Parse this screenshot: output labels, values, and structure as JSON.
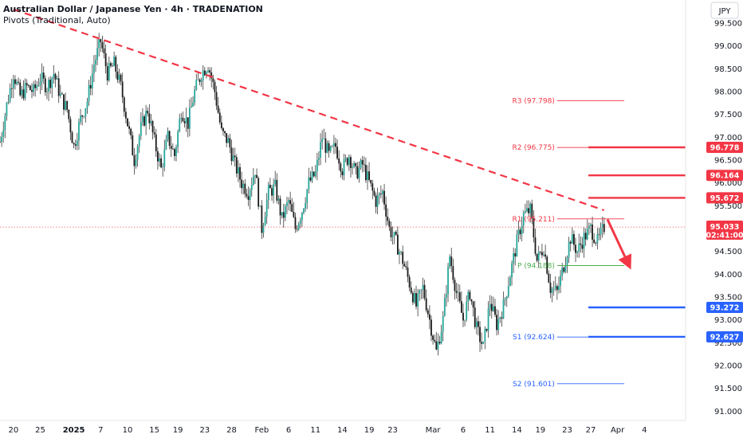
{
  "header": {
    "title": "Australian Dollar / Japanese Yen · 4h · TRADENATION",
    "indicator": "Pivots (Traditional, Auto)",
    "currency_badge": "JPY"
  },
  "colors": {
    "up": "#26a69a",
    "down": "#1a1a1a",
    "wick": "#3a3a3a",
    "resistance": "#f23645",
    "support": "#2962ff",
    "pivot": "#4caf50",
    "trend": "#f23645"
  },
  "chart_data": {
    "type": "candlestick",
    "symbol": "AUDJPY",
    "ylim": [
      90.9,
      99.9
    ],
    "yticks": [
      91.0,
      91.5,
      92.0,
      92.5,
      93.0,
      93.5,
      94.0,
      94.5,
      95.0,
      95.5,
      96.0,
      96.5,
      97.0,
      97.5,
      98.0,
      98.5,
      99.0,
      99.5
    ],
    "ytick_labels": [
      "91.000",
      "91.500",
      "92.000",
      "92.500",
      "93.000",
      "93.500",
      "94.000",
      "94.500",
      "95.000",
      "95.500",
      "96.000",
      "96.500",
      "97.000",
      "97.500",
      "98.000",
      "98.500",
      "99.000",
      "99.500"
    ],
    "xlim": [
      0,
      100
    ],
    "x_ticks": [
      {
        "label": "20",
        "x": 2,
        "bold": false
      },
      {
        "label": "25",
        "x": 6,
        "bold": false
      },
      {
        "label": "2025",
        "x": 11,
        "bold": true
      },
      {
        "label": "7",
        "x": 15,
        "bold": false
      },
      {
        "label": "10",
        "x": 19,
        "bold": false
      },
      {
        "label": "15",
        "x": 23,
        "bold": false
      },
      {
        "label": "19",
        "x": 26.5,
        "bold": false
      },
      {
        "label": "23",
        "x": 30.5,
        "bold": false
      },
      {
        "label": "28",
        "x": 34.5,
        "bold": false
      },
      {
        "label": "Feb",
        "x": 39,
        "bold": false
      },
      {
        "label": "6",
        "x": 43,
        "bold": false
      },
      {
        "label": "11",
        "x": 47,
        "bold": false
      },
      {
        "label": "14",
        "x": 51,
        "bold": false
      },
      {
        "label": "19",
        "x": 55,
        "bold": false
      },
      {
        "label": "23",
        "x": 58.5,
        "bold": false
      },
      {
        "label": "Mar",
        "x": 64.5,
        "bold": false
      },
      {
        "label": "6",
        "x": 69,
        "bold": false
      },
      {
        "label": "11",
        "x": 73,
        "bold": false
      },
      {
        "label": "14",
        "x": 77,
        "bold": false
      },
      {
        "label": "19",
        "x": 80.5,
        "bold": false
      },
      {
        "label": "23",
        "x": 84.5,
        "bold": false
      },
      {
        "label": "27",
        "x": 88,
        "bold": false
      },
      {
        "label": "Apr",
        "x": 92,
        "bold": false
      },
      {
        "label": "4",
        "x": 96,
        "bold": false
      }
    ],
    "price_path": [
      [
        0,
        96.9
      ],
      [
        1,
        97.7
      ],
      [
        2,
        98.4
      ],
      [
        3,
        97.9
      ],
      [
        4,
        98.1
      ],
      [
        5,
        98.0
      ],
      [
        6,
        98.3
      ],
      [
        7,
        98.1
      ],
      [
        8,
        98.4
      ],
      [
        9,
        97.9
      ],
      [
        10,
        97.6
      ],
      [
        11,
        96.8
      ],
      [
        12,
        97.4
      ],
      [
        13,
        97.8
      ],
      [
        14,
        98.6
      ],
      [
        15,
        99.1
      ],
      [
        16,
        98.4
      ],
      [
        17,
        98.6
      ],
      [
        18,
        98.1
      ],
      [
        19,
        97.3
      ],
      [
        20,
        96.5
      ],
      [
        21,
        97.2
      ],
      [
        22,
        97.6
      ],
      [
        23,
        96.9
      ],
      [
        24,
        96.3
      ],
      [
        25,
        97.0
      ],
      [
        26,
        96.6
      ],
      [
        27,
        97.6
      ],
      [
        28,
        97.3
      ],
      [
        29,
        98.0
      ],
      [
        30,
        98.4
      ],
      [
        31,
        98.6
      ],
      [
        32,
        98.0
      ],
      [
        33,
        97.1
      ],
      [
        34,
        96.9
      ],
      [
        35,
        96.4
      ],
      [
        36,
        96.0
      ],
      [
        37,
        95.8
      ],
      [
        38,
        96.3
      ],
      [
        39,
        95.0
      ],
      [
        40,
        95.8
      ],
      [
        41,
        95.9
      ],
      [
        42,
        95.2
      ],
      [
        43,
        95.6
      ],
      [
        44,
        95.0
      ],
      [
        45,
        95.4
      ],
      [
        46,
        96.0
      ],
      [
        47,
        96.2
      ],
      [
        48,
        97.0
      ],
      [
        49,
        96.6
      ],
      [
        50,
        96.8
      ],
      [
        51,
        96.3
      ],
      [
        52,
        96.6
      ],
      [
        53,
        96.2
      ],
      [
        54,
        96.4
      ],
      [
        55,
        96.0
      ],
      [
        56,
        95.6
      ],
      [
        57,
        95.8
      ],
      [
        58,
        95.0
      ],
      [
        59,
        94.7
      ],
      [
        60,
        94.3
      ],
      [
        61,
        93.8
      ],
      [
        62,
        93.3
      ],
      [
        63,
        93.7
      ],
      [
        64,
        93.0
      ],
      [
        65,
        92.3
      ],
      [
        66,
        93.0
      ],
      [
        67,
        94.4
      ],
      [
        68,
        93.6
      ],
      [
        69,
        93.0
      ],
      [
        70,
        93.6
      ],
      [
        71,
        92.8
      ],
      [
        72,
        92.4
      ],
      [
        73,
        93.4
      ],
      [
        74,
        92.9
      ],
      [
        75,
        93.3
      ],
      [
        76,
        94.0
      ],
      [
        77,
        94.7
      ],
      [
        78,
        95.3
      ],
      [
        79,
        95.4
      ],
      [
        80,
        94.3
      ],
      [
        81,
        94.6
      ],
      [
        82,
        93.7
      ],
      [
        83,
        93.6
      ],
      [
        84,
        94.2
      ],
      [
        85,
        94.8
      ],
      [
        86,
        94.5
      ],
      [
        87,
        94.8
      ],
      [
        88,
        95.0
      ],
      [
        89,
        94.7
      ],
      [
        90,
        95.03
      ]
    ],
    "current_price": {
      "value": 95.033,
      "label": "95.033",
      "countdown": "02:41:00"
    },
    "pivots": [
      {
        "name": "R3",
        "label": "R3 (97.798)",
        "value": 97.798,
        "kind": "resistance"
      },
      {
        "name": "R2",
        "label": "R2 (96.775)",
        "value": 96.775,
        "kind": "resistance"
      },
      {
        "name": "R1",
        "label": "R1 (95.211)",
        "value": 95.211,
        "kind": "resistance"
      },
      {
        "name": "P",
        "label": "P (94.188)",
        "value": 94.188,
        "kind": "pivot"
      },
      {
        "name": "S1",
        "label": "S1 (92.624)",
        "value": 92.624,
        "kind": "support"
      },
      {
        "name": "S2",
        "label": "S2 (91.601)",
        "value": 91.601,
        "kind": "support"
      }
    ],
    "levels": [
      {
        "value": 96.778,
        "label": "96.778",
        "kind": "resistance"
      },
      {
        "value": 96.164,
        "label": "96.164",
        "kind": "resistance"
      },
      {
        "value": 95.672,
        "label": "95.672",
        "kind": "resistance"
      },
      {
        "value": 93.272,
        "label": "93.272",
        "kind": "support"
      },
      {
        "value": 92.627,
        "label": "92.627",
        "kind": "support"
      }
    ],
    "trendline": {
      "start": {
        "x": 2,
        "y": 99.8
      },
      "end": {
        "x": 90,
        "y": 95.4
      }
    },
    "arrow": {
      "from": {
        "x": 90.5,
        "y": 95.2
      },
      "to": {
        "x": 94,
        "y": 94.1
      }
    }
  }
}
